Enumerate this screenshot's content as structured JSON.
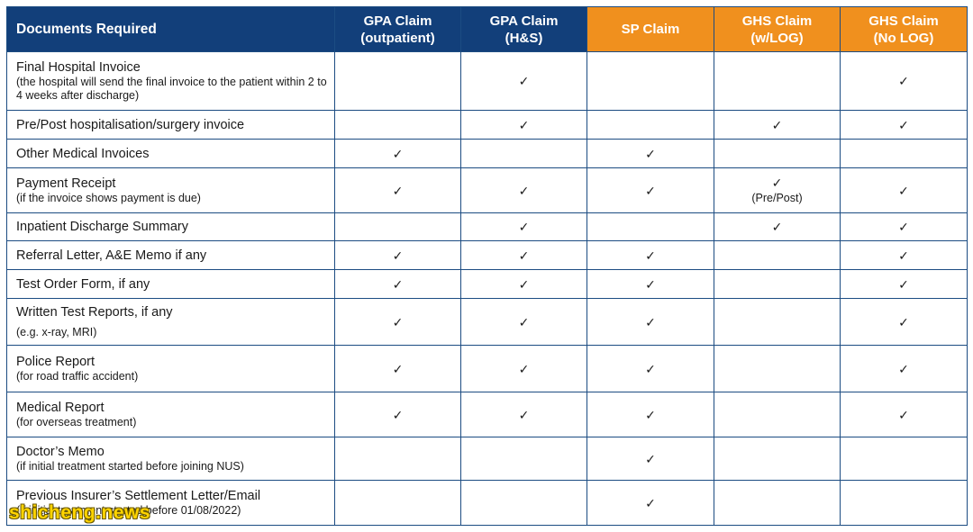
{
  "colors": {
    "header_blue": "#123f7a",
    "header_orange": "#f0901e",
    "border": "#1c4c82",
    "text": "#1a1a1a"
  },
  "header": {
    "documents_label": "Documents Required",
    "columns": [
      {
        "line1": "GPA Claim",
        "line2": "(outpatient)",
        "color": "#123f7a"
      },
      {
        "line1": "GPA Claim",
        "line2": "(H&S)",
        "color": "#123f7a"
      },
      {
        "line1": "SP Claim",
        "line2": "",
        "color": "#f0901e"
      },
      {
        "line1": "GHS Claim",
        "line2": "(w/LOG)",
        "color": "#f0901e"
      },
      {
        "line1": "GHS Claim",
        "line2": "(No LOG)",
        "color": "#f0901e"
      }
    ]
  },
  "check_symbol": "✓",
  "rows": [
    {
      "doc": "Final Hospital Invoice",
      "note": "(the hospital will send the final invoice to the patient within 2 to 4 weeks after discharge)",
      "cells": [
        {
          "check": false,
          "note": ""
        },
        {
          "check": true,
          "note": ""
        },
        {
          "check": false,
          "note": ""
        },
        {
          "check": false,
          "note": ""
        },
        {
          "check": true,
          "note": ""
        }
      ]
    },
    {
      "doc": "Pre/Post hospitalisation/surgery invoice",
      "note": "",
      "cells": [
        {
          "check": false,
          "note": ""
        },
        {
          "check": true,
          "note": ""
        },
        {
          "check": false,
          "note": ""
        },
        {
          "check": true,
          "note": ""
        },
        {
          "check": true,
          "note": ""
        }
      ]
    },
    {
      "doc": "Other Medical Invoices",
      "note": "",
      "cells": [
        {
          "check": true,
          "note": ""
        },
        {
          "check": false,
          "note": ""
        },
        {
          "check": true,
          "note": ""
        },
        {
          "check": false,
          "note": ""
        },
        {
          "check": false,
          "note": ""
        }
      ]
    },
    {
      "doc": "Payment Receipt",
      "note": "(if the invoice shows payment is due)",
      "cells": [
        {
          "check": true,
          "note": ""
        },
        {
          "check": true,
          "note": ""
        },
        {
          "check": true,
          "note": ""
        },
        {
          "check": true,
          "note": "(Pre/Post)"
        },
        {
          "check": true,
          "note": ""
        }
      ]
    },
    {
      "doc": "Inpatient Discharge Summary",
      "note": "",
      "cells": [
        {
          "check": false,
          "note": ""
        },
        {
          "check": true,
          "note": ""
        },
        {
          "check": false,
          "note": ""
        },
        {
          "check": true,
          "note": ""
        },
        {
          "check": true,
          "note": ""
        }
      ]
    },
    {
      "doc": "Referral Letter, A&E Memo if any",
      "note": "",
      "cells": [
        {
          "check": true,
          "note": ""
        },
        {
          "check": true,
          "note": ""
        },
        {
          "check": true,
          "note": ""
        },
        {
          "check": false,
          "note": ""
        },
        {
          "check": true,
          "note": ""
        }
      ]
    },
    {
      "doc": "Test Order Form, if any",
      "note": "",
      "cells": [
        {
          "check": true,
          "note": ""
        },
        {
          "check": true,
          "note": ""
        },
        {
          "check": true,
          "note": ""
        },
        {
          "check": false,
          "note": ""
        },
        {
          "check": true,
          "note": ""
        }
      ]
    },
    {
      "doc": "Written Test Reports, if any",
      "note": "(e.g. x-ray, MRI)",
      "cells": [
        {
          "check": true,
          "note": ""
        },
        {
          "check": true,
          "note": ""
        },
        {
          "check": true,
          "note": ""
        },
        {
          "check": false,
          "note": ""
        },
        {
          "check": true,
          "note": ""
        }
      ]
    },
    {
      "doc": "Police Report",
      "note": "(for road traffic accident)",
      "cells": [
        {
          "check": true,
          "note": ""
        },
        {
          "check": true,
          "note": ""
        },
        {
          "check": true,
          "note": ""
        },
        {
          "check": false,
          "note": ""
        },
        {
          "check": true,
          "note": ""
        }
      ]
    },
    {
      "doc": "Medical Report",
      "note": "(for overseas treatment)",
      "cells": [
        {
          "check": true,
          "note": ""
        },
        {
          "check": true,
          "note": ""
        },
        {
          "check": true,
          "note": ""
        },
        {
          "check": false,
          "note": ""
        },
        {
          "check": true,
          "note": ""
        }
      ]
    },
    {
      "doc": "Doctor’s Memo",
      "note": "(if initial treatment started before joining NUS)",
      "cells": [
        {
          "check": false,
          "note": ""
        },
        {
          "check": false,
          "note": ""
        },
        {
          "check": true,
          "note": ""
        },
        {
          "check": false,
          "note": ""
        },
        {
          "check": false,
          "note": ""
        }
      ]
    },
    {
      "doc": "Previous Insurer’s Settlement Letter/Email",
      "note": "(if initial treatment started before 01/08/2022)",
      "cells": [
        {
          "check": false,
          "note": ""
        },
        {
          "check": false,
          "note": ""
        },
        {
          "check": true,
          "note": ""
        },
        {
          "check": false,
          "note": ""
        },
        {
          "check": false,
          "note": ""
        }
      ]
    }
  ],
  "watermark": "shicheng.news"
}
